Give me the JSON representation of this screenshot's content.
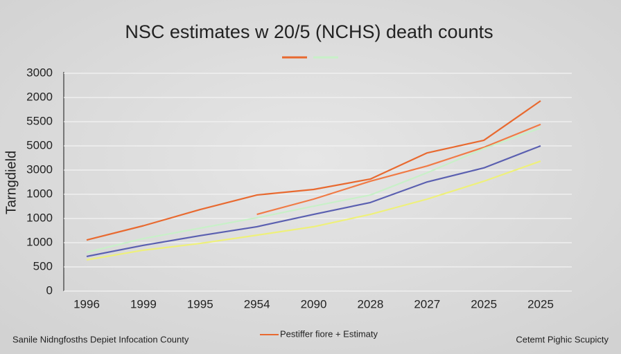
{
  "chart_data": {
    "type": "line",
    "title": "NSC estimates w 20/5 (NCHS) death counts",
    "y_label": "Tarngdield",
    "footer_left": "Sanile Nidngfosths Depiet Infocation County",
    "footer_legend": "Pestiffer fiore + Estimaty",
    "footer_right": "Cetemt Pighic Scupicty",
    "categories": [
      "1996",
      "1999",
      "1995",
      "2954",
      "2090",
      "2028",
      "2027",
      "2025",
      "2025"
    ],
    "ylim": [
      0,
      9
    ],
    "yticks": [
      0,
      {
        "value": 1,
        "label": "500"
      },
      {
        "value": 2,
        "label": "1000"
      },
      {
        "value": 3,
        "label": "1000"
      },
      {
        "value": 4,
        "label": "1000"
      },
      {
        "value": 5,
        "label": "3000"
      },
      {
        "value": 6,
        "label": "5000"
      },
      {
        "value": 7,
        "label": "5500"
      },
      {
        "value": 8,
        "label": "2000"
      },
      {
        "value": 9,
        "label": "3000"
      }
    ],
    "grid": true,
    "series": [
      {
        "color": "#e8692f",
        "values": [
          2.11,
          2.7,
          3.37,
          3.97,
          4.2,
          4.63,
          5.71,
          6.23,
          7.86
        ]
      },
      {
        "color": "#f07a45",
        "values": [
          null,
          null,
          null,
          3.17,
          3.8,
          4.54,
          5.17,
          5.94,
          6.89
        ]
      },
      {
        "color": "#c8f0c8",
        "values": [
          1.6,
          2.17,
          2.6,
          3.03,
          3.51,
          3.97,
          4.89,
          5.89,
          6.74
        ]
      },
      {
        "color": "#5a5fb0",
        "values": [
          1.43,
          1.89,
          2.29,
          2.66,
          3.17,
          3.66,
          4.51,
          5.09,
          6.0
        ]
      },
      {
        "color": "#eef07a",
        "values": [
          1.29,
          1.69,
          1.97,
          2.31,
          2.66,
          3.17,
          3.8,
          4.54,
          5.37
        ]
      }
    ]
  }
}
